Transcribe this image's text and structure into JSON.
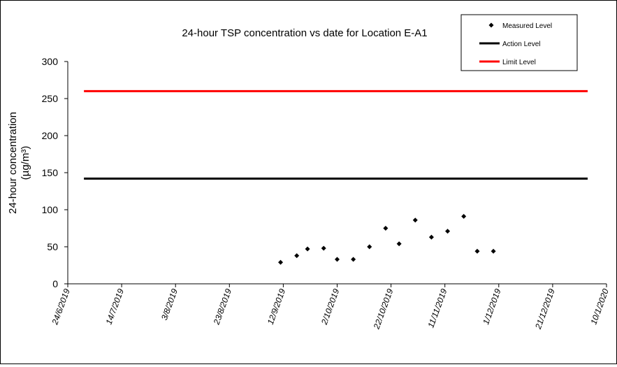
{
  "chart_data": {
    "type": "scatter",
    "title": "24-hour TSP concentration vs date for Location E-A1",
    "ylabel_line1": "24-hour concentration",
    "ylabel_line2": "(µg/m³)",
    "xlabel": "",
    "ylim": [
      0,
      300
    ],
    "y_ticks": [
      "0",
      "50",
      "100",
      "150",
      "200",
      "250",
      "300"
    ],
    "x_ticks": [
      "24/6/2019",
      "14/7/2019",
      "3/8/2019",
      "23/8/2019",
      "12/9/2019",
      "2/10/2019",
      "22/10/2019",
      "11/11/2019",
      "1/12/2019",
      "21/12/2019",
      "10/1/2020"
    ],
    "xlim": [
      "24/6/2019",
      "10/1/2020"
    ],
    "grid": false,
    "legend_position": "top-right",
    "series": [
      {
        "name": "Measured Level",
        "kind": "points",
        "color": "#000000",
        "x": [
          "11/9/2019",
          "17/9/2019",
          "21/9/2019",
          "27/9/2019",
          "2/10/2019",
          "8/10/2019",
          "14/10/2019",
          "20/10/2019",
          "25/10/2019",
          "31/10/2019",
          "6/11/2019",
          "12/11/2019",
          "18/11/2019",
          "23/11/2019",
          "29/11/2019"
        ],
        "values": [
          29,
          38,
          47,
          48,
          33,
          33,
          50,
          75,
          54,
          86,
          63,
          71,
          91,
          44,
          44
        ]
      },
      {
        "name": "Action Level",
        "kind": "line",
        "color": "#000000",
        "x": [
          "30/6/2019",
          "3/1/2020"
        ],
        "values": [
          142,
          142
        ]
      },
      {
        "name": "Limit Level",
        "kind": "line",
        "color": "#ff0000",
        "x": [
          "30/6/2019",
          "3/1/2020"
        ],
        "values": [
          260,
          260
        ]
      }
    ]
  }
}
